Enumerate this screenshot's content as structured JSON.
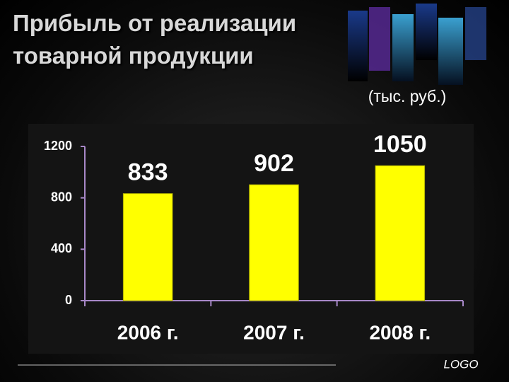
{
  "chart_data": {
    "type": "bar",
    "title": "Прибыль от реализации товарной продукции",
    "subtitle": "(тыс. руб.)",
    "categories": [
      "2006 г.",
      "2007 г.",
      "2008 г."
    ],
    "values": [
      833,
      902,
      1050
    ],
    "color": "#ffff00",
    "ylim": [
      0,
      1200
    ],
    "yticks": [
      0,
      400,
      800,
      1200
    ],
    "grid": false
  },
  "logo": "LOGO"
}
